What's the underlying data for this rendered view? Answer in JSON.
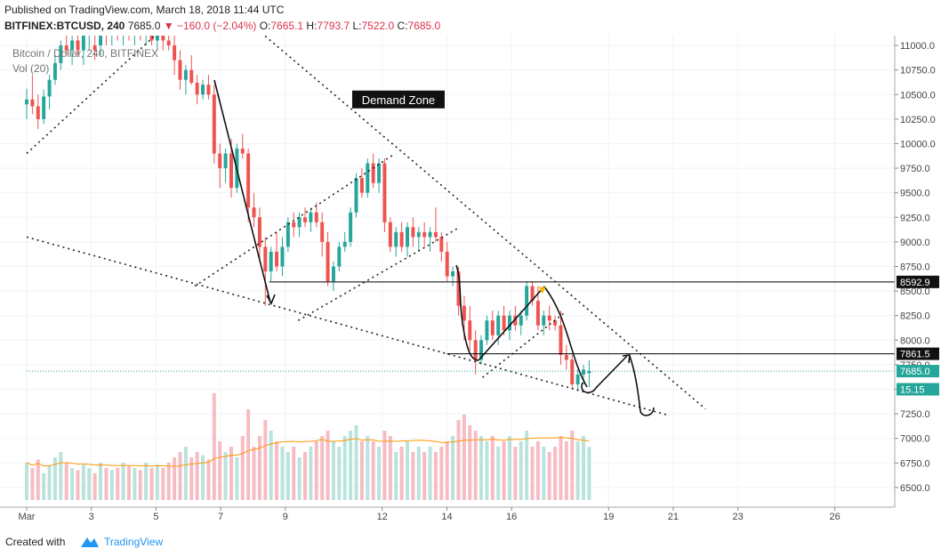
{
  "header": {
    "published": "Published on TradingView.com, March 18, 2018 11:44 UTC",
    "symbol": "BITFINEX:BTCUSD, 240",
    "last": "7685.0",
    "change": "▼ −160.0 (−2.04%)",
    "o_label": "O:",
    "o_value": "7665.1",
    "h_label": "H:",
    "h_value": "7793.7",
    "l_label": "L:",
    "l_value": "7522.0",
    "c_label": "C:",
    "c_value": "7685.0"
  },
  "footer": {
    "created_with": "Created with",
    "brand": "TradingView"
  },
  "colors": {
    "up": "#26a69a",
    "down": "#ef5350",
    "up_vol": "#b9e3dc",
    "down_vol": "#f7bcc3",
    "ma": "#ff9800",
    "grid": "#f0f3fa"
  },
  "chart_data": {
    "type": "candlestick",
    "legend_title": "Bitcoin / Dollar, 240, BITFINEX",
    "volume_label": "Vol (20)",
    "ylim": [
      6300,
      11100
    ],
    "yticks": [
      "11000.0",
      "10750.0",
      "10500.0",
      "10250.0",
      "10000.0",
      "9750.0",
      "9500.0",
      "9250.0",
      "9000.0",
      "8750.0",
      "8500.0",
      "8250.0",
      "8000.0",
      "7750.0",
      "7500.0",
      "7250.0",
      "7000.0",
      "6750.0",
      "6500.0"
    ],
    "xlim_days": [
      1,
      27
    ],
    "xticks": [
      {
        "day": 1,
        "label": "Mar"
      },
      {
        "day": 3,
        "label": "3"
      },
      {
        "day": 5,
        "label": "5"
      },
      {
        "day": 7,
        "label": "7"
      },
      {
        "day": 9,
        "label": "9"
      },
      {
        "day": 12,
        "label": "12"
      },
      {
        "day": 14,
        "label": "14"
      },
      {
        "day": 16,
        "label": "16"
      },
      {
        "day": 19,
        "label": "19"
      },
      {
        "day": 21,
        "label": "21"
      },
      {
        "day": 23,
        "label": "23"
      },
      {
        "day": 26,
        "label": "26"
      }
    ],
    "candles": [
      {
        "o": 10400,
        "h": 10560,
        "l": 10250,
        "c": 10450
      },
      {
        "o": 10450,
        "h": 10700,
        "l": 10300,
        "c": 10380
      },
      {
        "o": 10380,
        "h": 10500,
        "l": 10150,
        "c": 10250
      },
      {
        "o": 10250,
        "h": 10550,
        "l": 10200,
        "c": 10480
      },
      {
        "o": 10480,
        "h": 10700,
        "l": 10350,
        "c": 10650
      },
      {
        "o": 10650,
        "h": 10900,
        "l": 10600,
        "c": 10820
      },
      {
        "o": 10820,
        "h": 11050,
        "l": 10750,
        "c": 11000
      },
      {
        "o": 11000,
        "h": 11150,
        "l": 10900,
        "c": 10950
      },
      {
        "o": 10950,
        "h": 11150,
        "l": 10800,
        "c": 11050
      },
      {
        "o": 11050,
        "h": 11150,
        "l": 10900,
        "c": 10950
      },
      {
        "o": 10950,
        "h": 11150,
        "l": 10800,
        "c": 11100
      },
      {
        "o": 11100,
        "h": 11150,
        "l": 10950,
        "c": 11120
      },
      {
        "o": 11000,
        "h": 11100,
        "l": 10850,
        "c": 10950
      },
      {
        "o": 11000,
        "h": 11200,
        "l": 10900,
        "c": 11150
      },
      {
        "o": 11150,
        "h": 11250,
        "l": 11000,
        "c": 11100
      },
      {
        "o": 11100,
        "h": 11300,
        "l": 11000,
        "c": 11250
      },
      {
        "o": 11250,
        "h": 11300,
        "l": 11050,
        "c": 11150
      },
      {
        "o": 11150,
        "h": 11300,
        "l": 11000,
        "c": 11200
      },
      {
        "o": 11200,
        "h": 11300,
        "l": 11050,
        "c": 11100
      },
      {
        "o": 11100,
        "h": 11300,
        "l": 11000,
        "c": 11200
      },
      {
        "o": 11200,
        "h": 11300,
        "l": 11050,
        "c": 11100
      },
      {
        "o": 11100,
        "h": 11300,
        "l": 11000,
        "c": 11150
      },
      {
        "o": 11150,
        "h": 11300,
        "l": 11000,
        "c": 11050
      },
      {
        "o": 11050,
        "h": 11200,
        "l": 10950,
        "c": 11150
      },
      {
        "o": 11150,
        "h": 11200,
        "l": 10950,
        "c": 11050
      },
      {
        "o": 11050,
        "h": 11150,
        "l": 10950,
        "c": 11000
      },
      {
        "o": 11000,
        "h": 11100,
        "l": 10700,
        "c": 10850
      },
      {
        "o": 10850,
        "h": 10950,
        "l": 10550,
        "c": 10650
      },
      {
        "o": 10650,
        "h": 10800,
        "l": 10500,
        "c": 10750
      },
      {
        "o": 10750,
        "h": 10900,
        "l": 10600,
        "c": 10620
      },
      {
        "o": 10620,
        "h": 10700,
        "l": 10400,
        "c": 10500
      },
      {
        "o": 10500,
        "h": 10650,
        "l": 10450,
        "c": 10600
      },
      {
        "o": 10600,
        "h": 10700,
        "l": 10450,
        "c": 10500
      },
      {
        "o": 10500,
        "h": 10600,
        "l": 9800,
        "c": 9900
      },
      {
        "o": 9900,
        "h": 10000,
        "l": 9550,
        "c": 9750
      },
      {
        "o": 9750,
        "h": 9950,
        "l": 9600,
        "c": 9900
      },
      {
        "o": 9900,
        "h": 10050,
        "l": 9450,
        "c": 9550
      },
      {
        "o": 9550,
        "h": 10000,
        "l": 9500,
        "c": 9950
      },
      {
        "o": 9950,
        "h": 10100,
        "l": 9850,
        "c": 9900
      },
      {
        "o": 9900,
        "h": 9950,
        "l": 9200,
        "c": 9350
      },
      {
        "o": 9350,
        "h": 9500,
        "l": 9150,
        "c": 9250
      },
      {
        "o": 9250,
        "h": 9350,
        "l": 8800,
        "c": 8950
      },
      {
        "o": 8950,
        "h": 9050,
        "l": 8350,
        "c": 8700
      },
      {
        "o": 8700,
        "h": 8950,
        "l": 8600,
        "c": 8900
      },
      {
        "o": 8900,
        "h": 9100,
        "l": 8700,
        "c": 8750
      },
      {
        "o": 8750,
        "h": 9050,
        "l": 8650,
        "c": 8950
      },
      {
        "o": 8950,
        "h": 9250,
        "l": 8900,
        "c": 9200
      },
      {
        "o": 9200,
        "h": 9300,
        "l": 9050,
        "c": 9150
      },
      {
        "o": 9150,
        "h": 9300,
        "l": 9050,
        "c": 9250
      },
      {
        "o": 9250,
        "h": 9350,
        "l": 9150,
        "c": 9200
      },
      {
        "o": 9200,
        "h": 9350,
        "l": 9100,
        "c": 9300
      },
      {
        "o": 9300,
        "h": 9400,
        "l": 9150,
        "c": 9200
      },
      {
        "o": 9200,
        "h": 9300,
        "l": 8850,
        "c": 9000
      },
      {
        "o": 9000,
        "h": 9100,
        "l": 8550,
        "c": 8600
      },
      {
        "o": 8600,
        "h": 8800,
        "l": 8500,
        "c": 8750
      },
      {
        "o": 8750,
        "h": 9000,
        "l": 8700,
        "c": 8950
      },
      {
        "o": 8950,
        "h": 9100,
        "l": 8900,
        "c": 9000
      },
      {
        "o": 9000,
        "h": 9350,
        "l": 8950,
        "c": 9300
      },
      {
        "o": 9300,
        "h": 9700,
        "l": 9250,
        "c": 9650
      },
      {
        "o": 9650,
        "h": 9750,
        "l": 9450,
        "c": 9500
      },
      {
        "o": 9500,
        "h": 9850,
        "l": 9450,
        "c": 9800
      },
      {
        "o": 9800,
        "h": 9900,
        "l": 9550,
        "c": 9600
      },
      {
        "o": 9600,
        "h": 9850,
        "l": 9500,
        "c": 9800
      },
      {
        "o": 9800,
        "h": 9850,
        "l": 9100,
        "c": 9200
      },
      {
        "o": 9200,
        "h": 9250,
        "l": 8900,
        "c": 8950
      },
      {
        "o": 8950,
        "h": 9150,
        "l": 8850,
        "c": 9100
      },
      {
        "o": 9100,
        "h": 9200,
        "l": 8900,
        "c": 8950
      },
      {
        "o": 8950,
        "h": 9200,
        "l": 8850,
        "c": 9150
      },
      {
        "o": 9150,
        "h": 9250,
        "l": 8950,
        "c": 9050
      },
      {
        "o": 9050,
        "h": 9150,
        "l": 8900,
        "c": 9100
      },
      {
        "o": 9100,
        "h": 9200,
        "l": 8950,
        "c": 9050
      },
      {
        "o": 9050,
        "h": 9150,
        "l": 8900,
        "c": 9100
      },
      {
        "o": 9100,
        "h": 9350,
        "l": 9000,
        "c": 9050
      },
      {
        "o": 9050,
        "h": 9100,
        "l": 8800,
        "c": 8900
      },
      {
        "o": 8900,
        "h": 9000,
        "l": 8600,
        "c": 8650
      },
      {
        "o": 8650,
        "h": 8750,
        "l": 8550,
        "c": 8700
      },
      {
        "o": 8700,
        "h": 8750,
        "l": 8250,
        "c": 8350
      },
      {
        "o": 8350,
        "h": 8450,
        "l": 8000,
        "c": 8200
      },
      {
        "o": 8200,
        "h": 8350,
        "l": 7900,
        "c": 8000
      },
      {
        "o": 8000,
        "h": 8100,
        "l": 7650,
        "c": 7800
      },
      {
        "o": 7800,
        "h": 8050,
        "l": 7750,
        "c": 8000
      },
      {
        "o": 8000,
        "h": 8250,
        "l": 7950,
        "c": 8200
      },
      {
        "o": 8200,
        "h": 8300,
        "l": 8000,
        "c": 8050
      },
      {
        "o": 8050,
        "h": 8300,
        "l": 7950,
        "c": 8250
      },
      {
        "o": 8250,
        "h": 8350,
        "l": 8050,
        "c": 8100
      },
      {
        "o": 8100,
        "h": 8300,
        "l": 8000,
        "c": 8250
      },
      {
        "o": 8250,
        "h": 8350,
        "l": 8100,
        "c": 8150
      },
      {
        "o": 8150,
        "h": 8300,
        "l": 8050,
        "c": 8250
      },
      {
        "o": 8250,
        "h": 8600,
        "l": 8200,
        "c": 8550
      },
      {
        "o": 8550,
        "h": 8600,
        "l": 8350,
        "c": 8400
      },
      {
        "o": 8400,
        "h": 8550,
        "l": 8100,
        "c": 8150
      },
      {
        "o": 8150,
        "h": 8300,
        "l": 8050,
        "c": 8250
      },
      {
        "o": 8250,
        "h": 8350,
        "l": 8100,
        "c": 8200
      },
      {
        "o": 8200,
        "h": 8250,
        "l": 8100,
        "c": 8150
      },
      {
        "o": 8150,
        "h": 8300,
        "l": 7750,
        "c": 7850
      },
      {
        "o": 7850,
        "h": 7950,
        "l": 7700,
        "c": 7800
      },
      {
        "o": 7800,
        "h": 7850,
        "l": 7500,
        "c": 7550
      },
      {
        "o": 7550,
        "h": 7700,
        "l": 7480,
        "c": 7650
      },
      {
        "o": 7650,
        "h": 7750,
        "l": 7550,
        "c": 7700
      },
      {
        "o": 7665.1,
        "h": 7793.7,
        "l": 7522.0,
        "c": 7685.0
      }
    ],
    "volumes": [
      0.35,
      0.3,
      0.38,
      0.25,
      0.32,
      0.4,
      0.45,
      0.35,
      0.3,
      0.28,
      0.33,
      0.3,
      0.25,
      0.35,
      0.3,
      0.28,
      0.3,
      0.35,
      0.32,
      0.3,
      0.28,
      0.35,
      0.3,
      0.33,
      0.3,
      0.35,
      0.4,
      0.45,
      0.5,
      0.4,
      0.45,
      0.42,
      0.38,
      1.0,
      0.55,
      0.45,
      0.5,
      0.4,
      0.6,
      0.85,
      0.5,
      0.6,
      0.75,
      0.65,
      0.55,
      0.5,
      0.45,
      0.5,
      0.4,
      0.45,
      0.5,
      0.55,
      0.6,
      0.65,
      0.55,
      0.5,
      0.6,
      0.65,
      0.7,
      0.55,
      0.6,
      0.55,
      0.5,
      0.65,
      0.6,
      0.45,
      0.5,
      0.55,
      0.45,
      0.5,
      0.45,
      0.5,
      0.45,
      0.5,
      0.55,
      0.6,
      0.75,
      0.8,
      0.7,
      0.65,
      0.6,
      0.55,
      0.6,
      0.5,
      0.55,
      0.6,
      0.5,
      0.55,
      0.65,
      0.5,
      0.55,
      0.5,
      0.45,
      0.5,
      0.6,
      0.55,
      0.65,
      0.55,
      0.6,
      0.5
    ],
    "lines": [
      {
        "kind": "dotted",
        "points": [
          [
            1,
            9900
          ],
          [
            5.3,
            11200
          ]
        ]
      },
      {
        "kind": "dotted",
        "points": [
          [
            8,
            11200
          ],
          [
            22,
            7300
          ]
        ]
      },
      {
        "kind": "dotted",
        "points": [
          [
            1,
            9050
          ],
          [
            20.8,
            7240
          ]
        ]
      },
      {
        "kind": "dotted",
        "points": [
          [
            6.2,
            8550
          ],
          [
            12.4,
            9900
          ]
        ]
      },
      {
        "kind": "dotted",
        "points": [
          [
            9.4,
            8200
          ],
          [
            14.4,
            9150
          ]
        ]
      },
      {
        "kind": "dotted",
        "points": [
          [
            15.1,
            7620
          ],
          [
            17.6,
            8270
          ]
        ]
      },
      {
        "kind": "hline",
        "price": 8592.9,
        "from_day": 8.5
      },
      {
        "kind": "hline",
        "price": 7861.5,
        "from_day": 14
      }
    ],
    "price_badges": [
      {
        "price": 8592.9,
        "label": "8592.9",
        "style": "dark"
      },
      {
        "price": 7861.5,
        "label": "7861.5",
        "style": "dark"
      },
      {
        "price": 7685.0,
        "label": "7685.0",
        "style": "green"
      },
      {
        "price": 7500.0,
        "label": "15.15",
        "style": "green"
      }
    ],
    "annotations": [
      {
        "text": "Demand Zone",
        "day": 12.5,
        "price": 10450
      }
    ]
  }
}
